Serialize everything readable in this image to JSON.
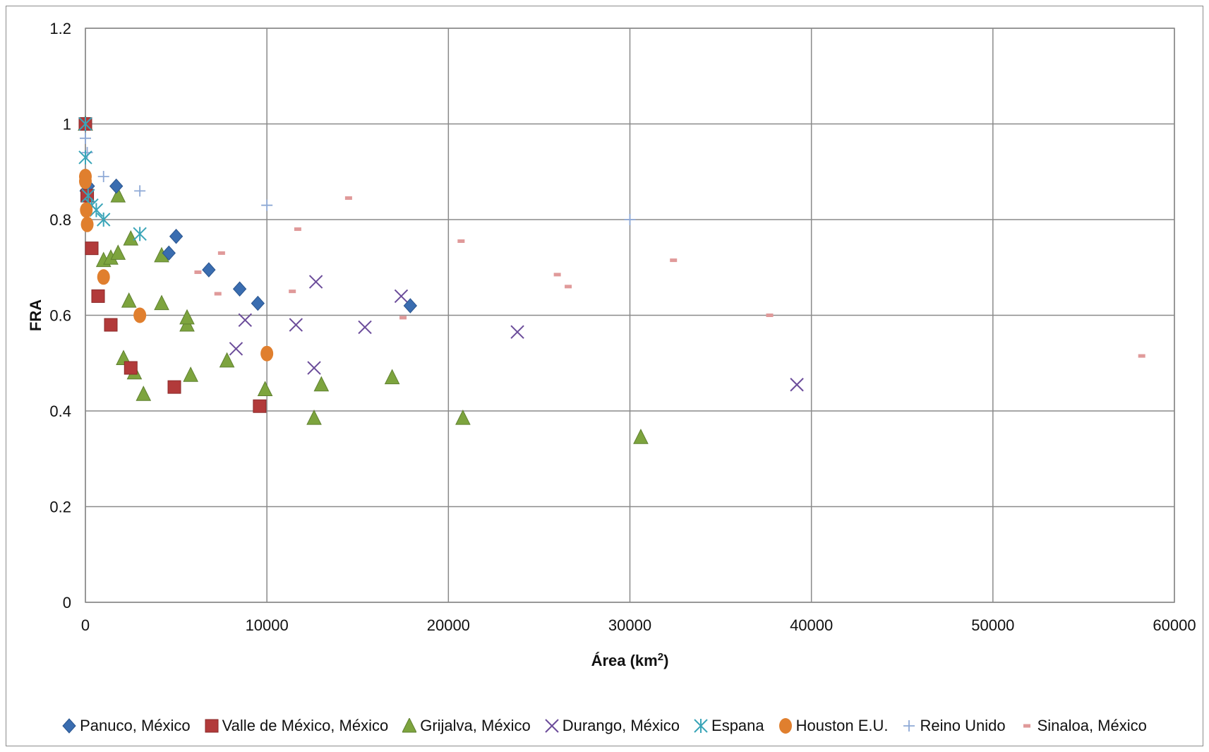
{
  "chart_data": {
    "type": "scatter",
    "title": "",
    "xlabel": "Área (km",
    "xlabel_sup": "2",
    "xlabel_close": ")",
    "ylabel": "FRA",
    "xlim": [
      0,
      60000
    ],
    "ylim": [
      0,
      1.2
    ],
    "x_ticks": [
      "0",
      "10000",
      "20000",
      "30000",
      "40000",
      "50000",
      "60000"
    ],
    "y_ticks": [
      "0",
      "0.2",
      "0.4",
      "0.6",
      "0.8",
      "1",
      "1.2"
    ],
    "grid": true,
    "legend_position": "bottom",
    "series": [
      {
        "name": "Panuco, México",
        "marker": "diamond",
        "color": "#3a6db0",
        "points": [
          [
            0,
            1.0
          ],
          [
            50,
            0.86
          ],
          [
            150,
            0.87
          ],
          [
            1700,
            0.87
          ],
          [
            4600,
            0.73
          ],
          [
            5000,
            0.765
          ],
          [
            6800,
            0.695
          ],
          [
            8500,
            0.655
          ],
          [
            9500,
            0.625
          ],
          [
            17900,
            0.62
          ]
        ]
      },
      {
        "name": "Valle de México, México",
        "marker": "square",
        "color": "#b23a3a",
        "points": [
          [
            0,
            1.0
          ],
          [
            100,
            0.85
          ],
          [
            350,
            0.74
          ],
          [
            700,
            0.64
          ],
          [
            1400,
            0.58
          ],
          [
            2500,
            0.49
          ],
          [
            4900,
            0.45
          ],
          [
            9600,
            0.41
          ]
        ]
      },
      {
        "name": "Grijalva, México",
        "marker": "triangle",
        "color": "#7da43e",
        "points": [
          [
            0,
            1.0
          ],
          [
            1000,
            0.715
          ],
          [
            1400,
            0.72
          ],
          [
            1800,
            0.73
          ],
          [
            1800,
            0.85
          ],
          [
            2100,
            0.51
          ],
          [
            2400,
            0.63
          ],
          [
            2500,
            0.76
          ],
          [
            2700,
            0.48
          ],
          [
            3200,
            0.435
          ],
          [
            4200,
            0.625
          ],
          [
            4200,
            0.725
          ],
          [
            5600,
            0.58
          ],
          [
            5600,
            0.595
          ],
          [
            5800,
            0.475
          ],
          [
            7800,
            0.505
          ],
          [
            9900,
            0.445
          ],
          [
            12600,
            0.385
          ],
          [
            13000,
            0.455
          ],
          [
            16900,
            0.47
          ],
          [
            20800,
            0.385
          ],
          [
            30600,
            0.345
          ]
        ]
      },
      {
        "name": "Durango, México",
        "marker": "x",
        "color": "#6b4c9a",
        "points": [
          [
            8300,
            0.53
          ],
          [
            8800,
            0.59
          ],
          [
            11600,
            0.58
          ],
          [
            12600,
            0.49
          ],
          [
            12700,
            0.67
          ],
          [
            15400,
            0.575
          ],
          [
            17400,
            0.64
          ],
          [
            23800,
            0.565
          ],
          [
            39200,
            0.455
          ]
        ]
      },
      {
        "name": "Espana",
        "marker": "asterisk",
        "color": "#3aa5b8",
        "points": [
          [
            0,
            1.0
          ],
          [
            0,
            0.93
          ],
          [
            150,
            0.85
          ],
          [
            350,
            0.83
          ],
          [
            600,
            0.82
          ],
          [
            1000,
            0.8
          ],
          [
            3000,
            0.77
          ]
        ]
      },
      {
        "name": "Houston E.U.",
        "marker": "circle",
        "color": "#e07f2e",
        "points": [
          [
            0,
            0.89
          ],
          [
            0,
            0.88
          ],
          [
            50,
            0.82
          ],
          [
            100,
            0.79
          ],
          [
            1000,
            0.68
          ],
          [
            3000,
            0.6
          ],
          [
            10000,
            0.52
          ]
        ]
      },
      {
        "name": "Reino Unido",
        "marker": "plus",
        "color": "#8ea9d6",
        "points": [
          [
            0,
            1.0
          ],
          [
            0,
            0.97
          ],
          [
            100,
            0.94
          ],
          [
            1000,
            0.89
          ],
          [
            3000,
            0.86
          ],
          [
            10000,
            0.83
          ],
          [
            30000,
            0.8
          ]
        ]
      },
      {
        "name": "Sinaloa, México",
        "marker": "dash",
        "color": "#e09a9a",
        "points": [
          [
            100,
            1.0
          ],
          [
            6200,
            0.69
          ],
          [
            7300,
            0.645
          ],
          [
            7500,
            0.73
          ],
          [
            11400,
            0.65
          ],
          [
            11700,
            0.78
          ],
          [
            14500,
            0.845
          ],
          [
            17500,
            0.595
          ],
          [
            20700,
            0.755
          ],
          [
            26000,
            0.685
          ],
          [
            26600,
            0.66
          ],
          [
            32400,
            0.715
          ],
          [
            37700,
            0.6
          ],
          [
            58200,
            0.515
          ]
        ]
      }
    ]
  }
}
